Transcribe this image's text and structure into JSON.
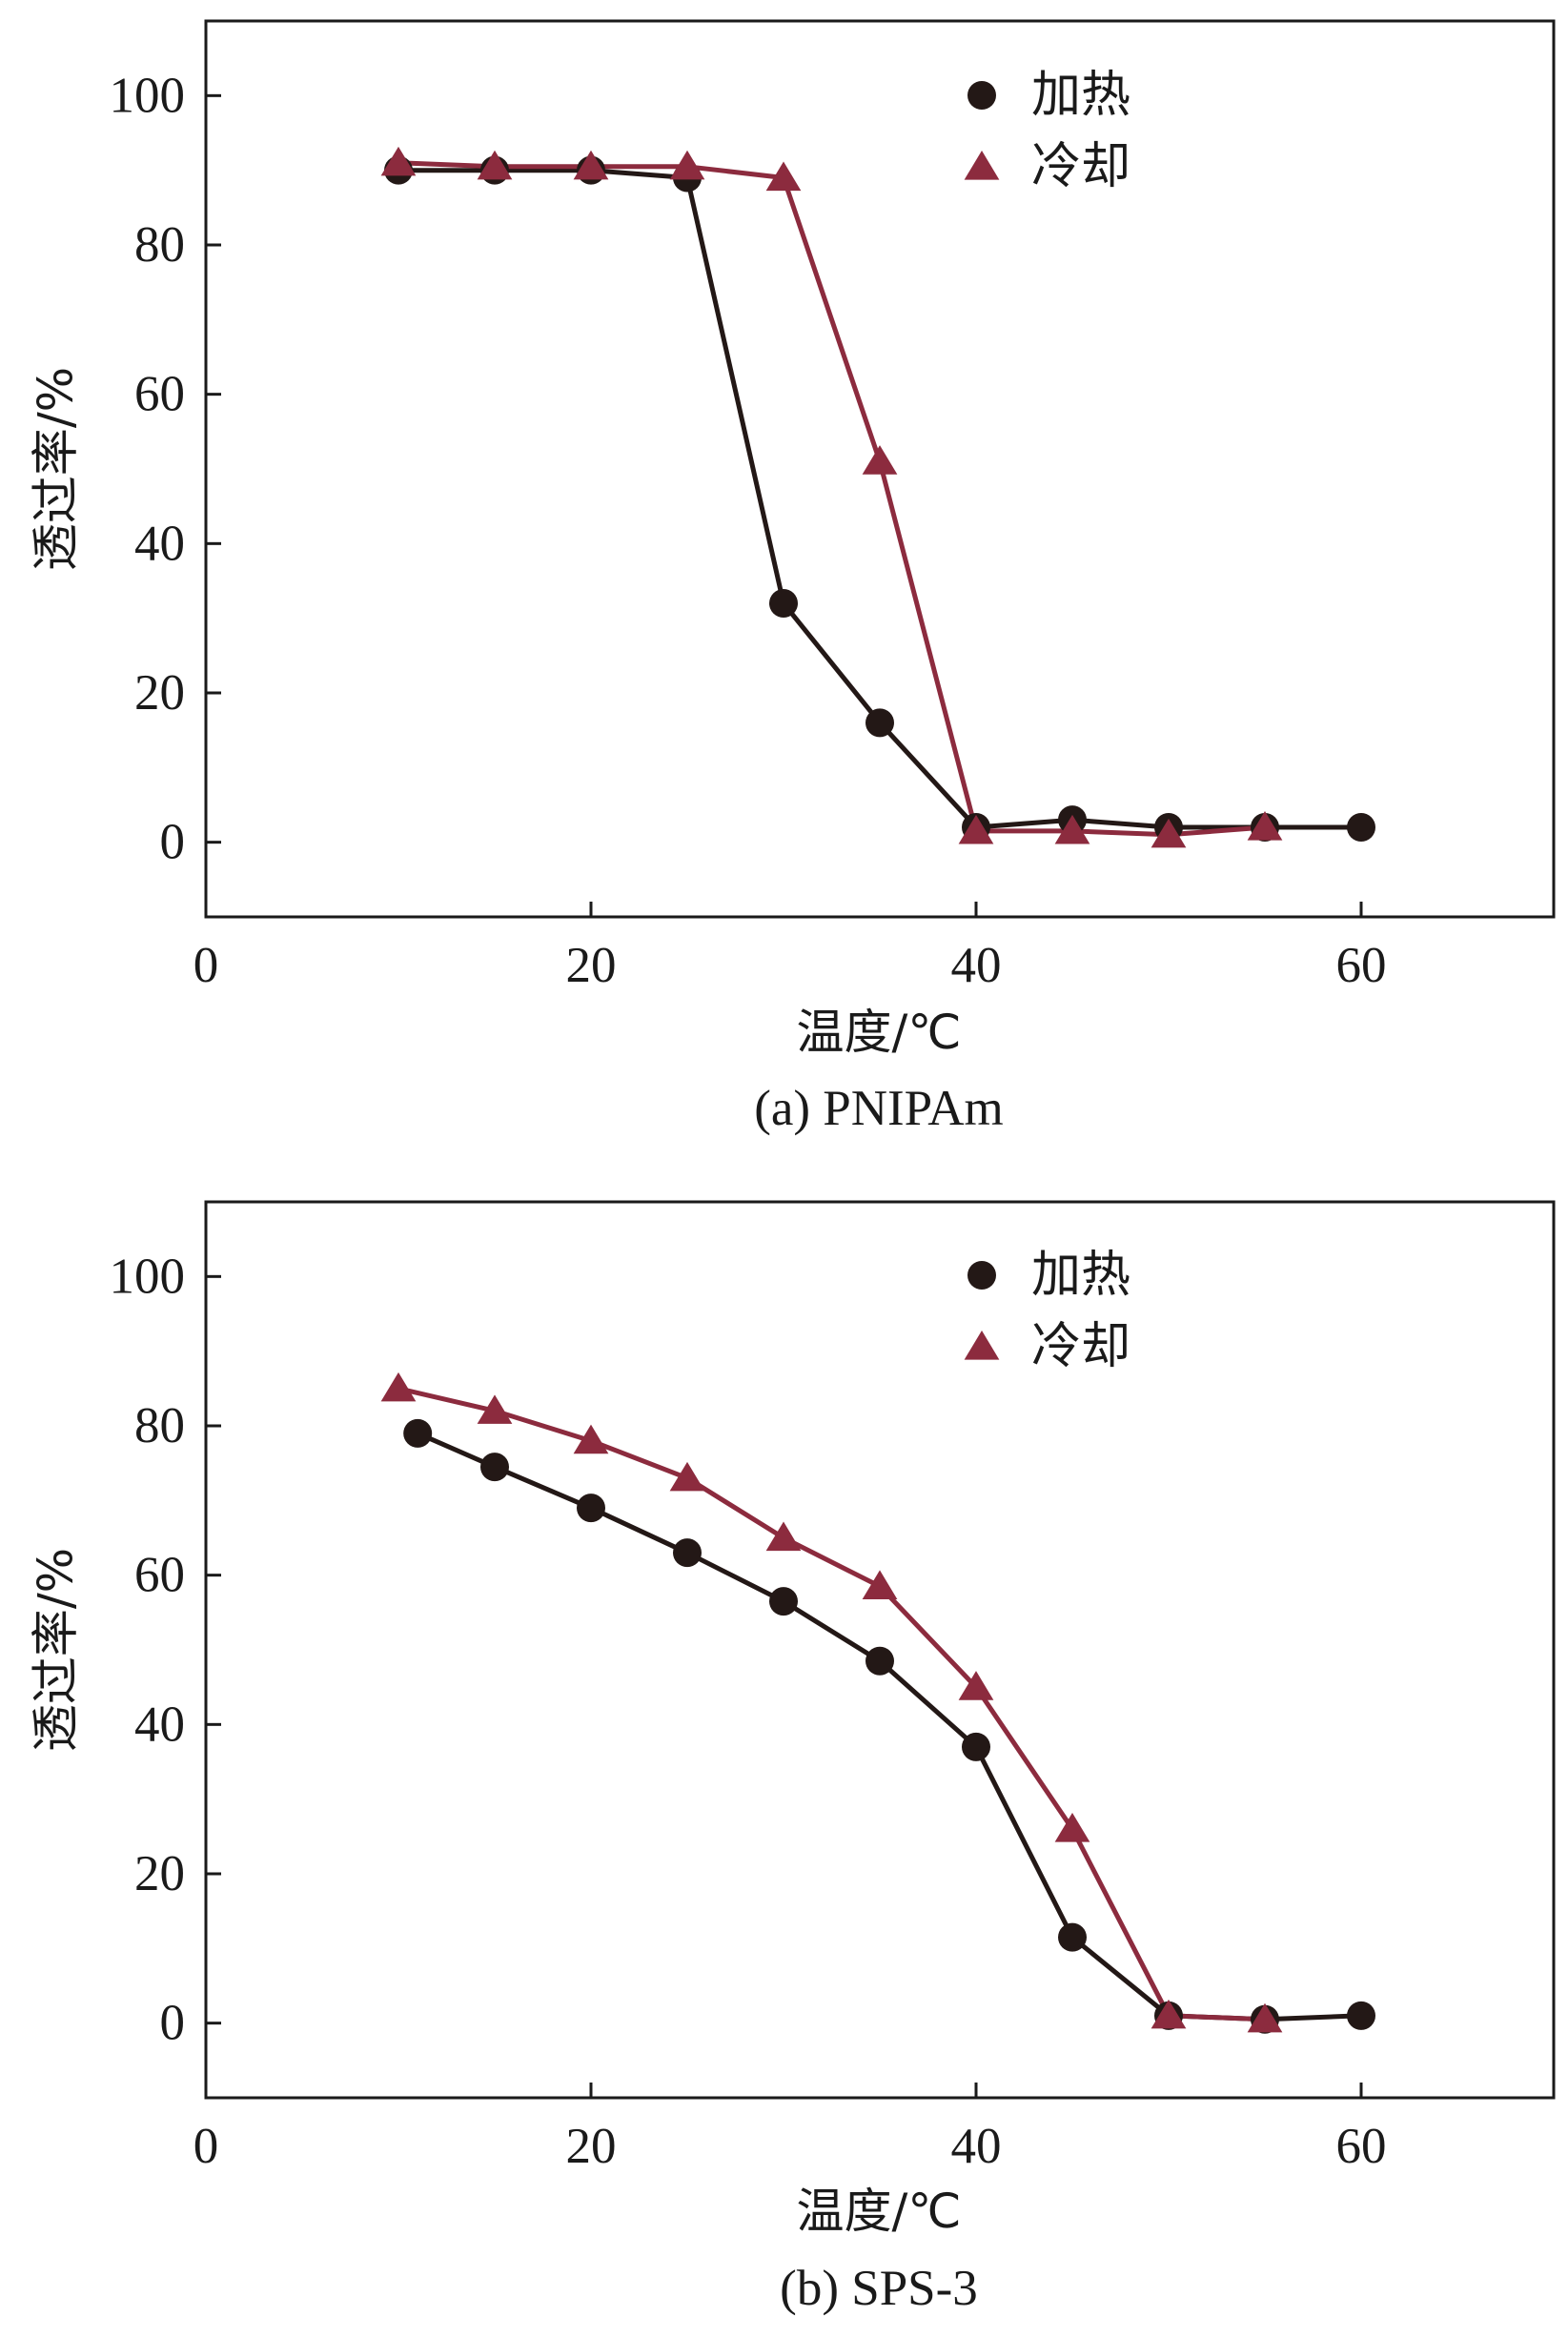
{
  "colors": {
    "heating": "#231816",
    "cooling": "#8c2b3e",
    "axis": "#1a1a1a",
    "background": "#ffffff"
  },
  "chart_data": [
    {
      "type": "line",
      "caption": "(a) PNIPAm",
      "xlabel": "温度/℃",
      "ylabel": "透过率/%",
      "xlim": [
        0,
        70
      ],
      "ylim": [
        -10,
        110
      ],
      "xticks": [
        0,
        20,
        40,
        60
      ],
      "yticks": [
        0,
        20,
        40,
        60,
        80,
        100
      ],
      "legend_position": "top-center",
      "series": [
        {
          "name": "加热",
          "marker": "circle",
          "color": "#231816",
          "x": [
            10,
            15,
            20,
            25,
            30,
            35,
            40,
            45,
            50,
            55,
            60
          ],
          "y": [
            90,
            90,
            90,
            89,
            32,
            16,
            2,
            3,
            2,
            2,
            2
          ]
        },
        {
          "name": "冷却",
          "marker": "triangle",
          "color": "#8c2b3e",
          "x": [
            10,
            15,
            20,
            25,
            30,
            35,
            40,
            45,
            50,
            55
          ],
          "y": [
            91,
            90.5,
            90.5,
            90.5,
            89,
            51,
            1.5,
            1.5,
            1,
            2
          ]
        }
      ]
    },
    {
      "type": "line",
      "caption": "(b) SPS-3",
      "xlabel": "温度/℃",
      "ylabel": "透过率/%",
      "xlim": [
        0,
        70
      ],
      "ylim": [
        -10,
        110
      ],
      "xticks": [
        0,
        20,
        40,
        60
      ],
      "yticks": [
        0,
        20,
        40,
        60,
        80,
        100
      ],
      "legend_position": "top-center",
      "series": [
        {
          "name": "加热",
          "marker": "circle",
          "color": "#231816",
          "x": [
            11,
            15,
            20,
            25,
            30,
            35,
            40,
            45,
            50,
            55,
            60
          ],
          "y": [
            79,
            74.5,
            69,
            63,
            56.5,
            48.5,
            37,
            11.5,
            1,
            0.5,
            1
          ]
        },
        {
          "name": "冷却",
          "marker": "triangle",
          "color": "#8c2b3e",
          "x": [
            10,
            15,
            20,
            25,
            30,
            35,
            40,
            45,
            50,
            55
          ],
          "y": [
            85,
            82,
            78,
            73,
            65,
            58.5,
            45,
            26,
            1,
            0.5
          ]
        }
      ]
    }
  ]
}
